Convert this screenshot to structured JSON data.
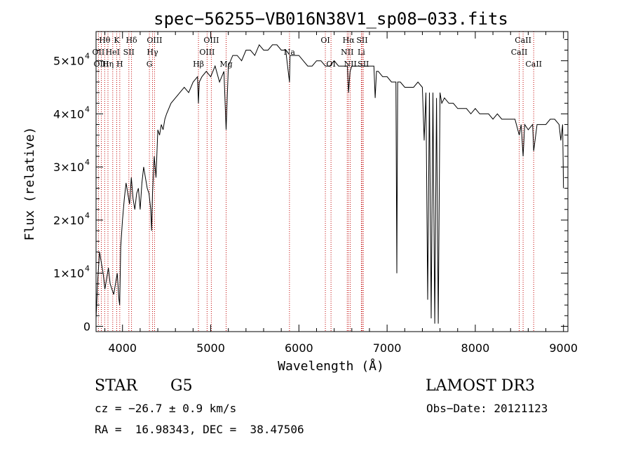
{
  "chart_data": {
    "type": "line",
    "title": "spec−56255−VB016N38V1_sp08−033.fits",
    "xlabel": "Wavelength (Å)",
    "ylabel": "Flux (relative)",
    "xlim": [
      3700,
      9050
    ],
    "ylim": [
      -1000,
      55500
    ],
    "xticks": [
      4000,
      5000,
      6000,
      7000,
      8000,
      9000
    ],
    "yticks": [
      {
        "value": 0,
        "mantissa": "0",
        "exp": ""
      },
      {
        "value": 10000,
        "mantissa": "1×10",
        "exp": "4"
      },
      {
        "value": 20000,
        "mantissa": "2×10",
        "exp": "4"
      },
      {
        "value": 30000,
        "mantissa": "3×10",
        "exp": "4"
      },
      {
        "value": 40000,
        "mantissa": "4×10",
        "exp": "4"
      },
      {
        "value": 50000,
        "mantissa": "5×10",
        "exp": "4"
      }
    ],
    "grid": false,
    "series": [
      {
        "x": [
          3700,
          3720,
          3740,
          3760,
          3780,
          3800,
          3820,
          3840,
          3860,
          3880,
          3900,
          3920,
          3940,
          3960,
          3968,
          3980,
          4000,
          4020,
          4040,
          4060,
          4080,
          4100,
          4120,
          4140,
          4160,
          4180,
          4200,
          4220,
          4240,
          4260,
          4280,
          4300,
          4320,
          4330,
          4340,
          4360,
          4380,
          4400,
          4420,
          4440,
          4460,
          4480,
          4500,
          4550,
          4600,
          4650,
          4700,
          4750,
          4800,
          4850,
          4861,
          4870,
          4900,
          4950,
          5000,
          5050,
          5100,
          5150,
          5175,
          5200,
          5250,
          5300,
          5350,
          5400,
          5450,
          5500,
          5550,
          5600,
          5650,
          5700,
          5750,
          5800,
          5850,
          5893,
          5900,
          5950,
          6000,
          6050,
          6100,
          6150,
          6200,
          6250,
          6300,
          6350,
          6400,
          6450,
          6500,
          6550,
          6563,
          6580,
          6600,
          6650,
          6700,
          6750,
          6800,
          6850,
          6865,
          6880,
          6900,
          6950,
          7000,
          7050,
          7100,
          7110,
          7120,
          7150,
          7200,
          7250,
          7300,
          7350,
          7400,
          7420,
          7440,
          7460,
          7480,
          7500,
          7520,
          7540,
          7560,
          7580,
          7600,
          7620,
          7650,
          7700,
          7750,
          7800,
          7850,
          7900,
          7950,
          8000,
          8050,
          8100,
          8150,
          8200,
          8250,
          8300,
          8350,
          8400,
          8450,
          8498,
          8520,
          8542,
          8560,
          8600,
          8650,
          8662,
          8700,
          8750,
          8800,
          8850,
          8900,
          8950,
          8970,
          8990,
          9000
        ],
        "y": [
          1500,
          9000,
          14000,
          12000,
          10000,
          7000,
          9000,
          11000,
          8000,
          7000,
          6000,
          8000,
          10000,
          5000,
          4000,
          15000,
          20000,
          24000,
          27000,
          25000,
          23000,
          28000,
          24000,
          22000,
          25000,
          26000,
          22000,
          27000,
          30000,
          28000,
          26000,
          25000,
          22000,
          18000,
          25000,
          32000,
          28000,
          37000,
          36000,
          38000,
          37000,
          39000,
          40000,
          42000,
          43000,
          44000,
          45000,
          44000,
          46000,
          47000,
          42000,
          46000,
          47000,
          48000,
          47000,
          49000,
          46000,
          48000,
          37000,
          49000,
          51000,
          51000,
          50000,
          52000,
          52000,
          51000,
          53000,
          52000,
          52000,
          53000,
          53000,
          52000,
          52000,
          46000,
          51000,
          51000,
          51000,
          50000,
          49000,
          49000,
          50000,
          50000,
          49000,
          49000,
          50000,
          49000,
          49000,
          49000,
          44000,
          48000,
          49000,
          49000,
          49000,
          49000,
          49000,
          49000,
          43000,
          48000,
          48000,
          47000,
          47000,
          46000,
          46000,
          10000,
          46000,
          46000,
          45000,
          45000,
          45000,
          46000,
          45000,
          35000,
          44000,
          5000,
          44000,
          1500,
          44000,
          500,
          43000,
          500,
          44000,
          42000,
          43000,
          42000,
          42000,
          41000,
          41000,
          41000,
          40000,
          41000,
          40000,
          40000,
          40000,
          39000,
          40000,
          39000,
          39000,
          39000,
          39000,
          36000,
          38000,
          32000,
          38000,
          37000,
          38000,
          33000,
          38000,
          38000,
          38000,
          39000,
          39000,
          38000,
          35000,
          38000,
          26000
        ]
      }
    ],
    "lines": [
      {
        "label": "Hθ",
        "x": 3798,
        "row": 0
      },
      {
        "label": "OII",
        "x": 3727,
        "row": 1
      },
      {
        "label": "OIII",
        "x": 3760,
        "row": 2
      },
      {
        "label": "Hη",
        "x": 3835,
        "row": 2
      },
      {
        "label": "HeI",
        "x": 3889,
        "row": 1
      },
      {
        "label": "K",
        "x": 3934,
        "row": 0
      },
      {
        "label": "H",
        "x": 3969,
        "row": 2
      },
      {
        "label": "SII",
        "x": 4072,
        "row": 1
      },
      {
        "label": "Hδ",
        "x": 4102,
        "row": 0
      },
      {
        "label": "OIII",
        "x": 4363,
        "row": 0
      },
      {
        "label": "Hγ",
        "x": 4340,
        "row": 1
      },
      {
        "label": "G",
        "x": 4305,
        "row": 2
      },
      {
        "label": "Hβ",
        "x": 4861,
        "row": 2
      },
      {
        "label": "OIII",
        "x": 5007,
        "row": 0
      },
      {
        "label": "OIII",
        "x": 4959,
        "row": 1
      },
      {
        "label": "Mg",
        "x": 5175,
        "row": 2
      },
      {
        "label": "Na",
        "x": 5893,
        "row": 1
      },
      {
        "label": "OI",
        "x": 6300,
        "row": 0
      },
      {
        "label": "OI",
        "x": 6364,
        "row": 2
      },
      {
        "label": "Hα",
        "x": 6563,
        "row": 0
      },
      {
        "label": "NII",
        "x": 6548,
        "row": 1
      },
      {
        "label": "NII",
        "x": 6583,
        "row": 2
      },
      {
        "label": "SII",
        "x": 6717,
        "row": 0
      },
      {
        "label": "Li",
        "x": 6708,
        "row": 1
      },
      {
        "label": "SII",
        "x": 6731,
        "row": 2
      },
      {
        "label": "CaII",
        "x": 8542,
        "row": 0
      },
      {
        "label": "CaII",
        "x": 8498,
        "row": 1
      },
      {
        "label": "CaII",
        "x": 8662,
        "row": 2
      }
    ]
  },
  "info": {
    "object_class": "STAR",
    "subclass": "G5",
    "survey": "LAMOST DR3",
    "redshift": "cz = −26.7 ± 0.9 km/s",
    "obs_date": "Obs−Date: 20121123",
    "coords": "RA =  16.98343, DEC =  38.47506"
  },
  "colors": {
    "spectrum": "#000000",
    "line_markers": "#c00000",
    "axes": "#000000"
  }
}
